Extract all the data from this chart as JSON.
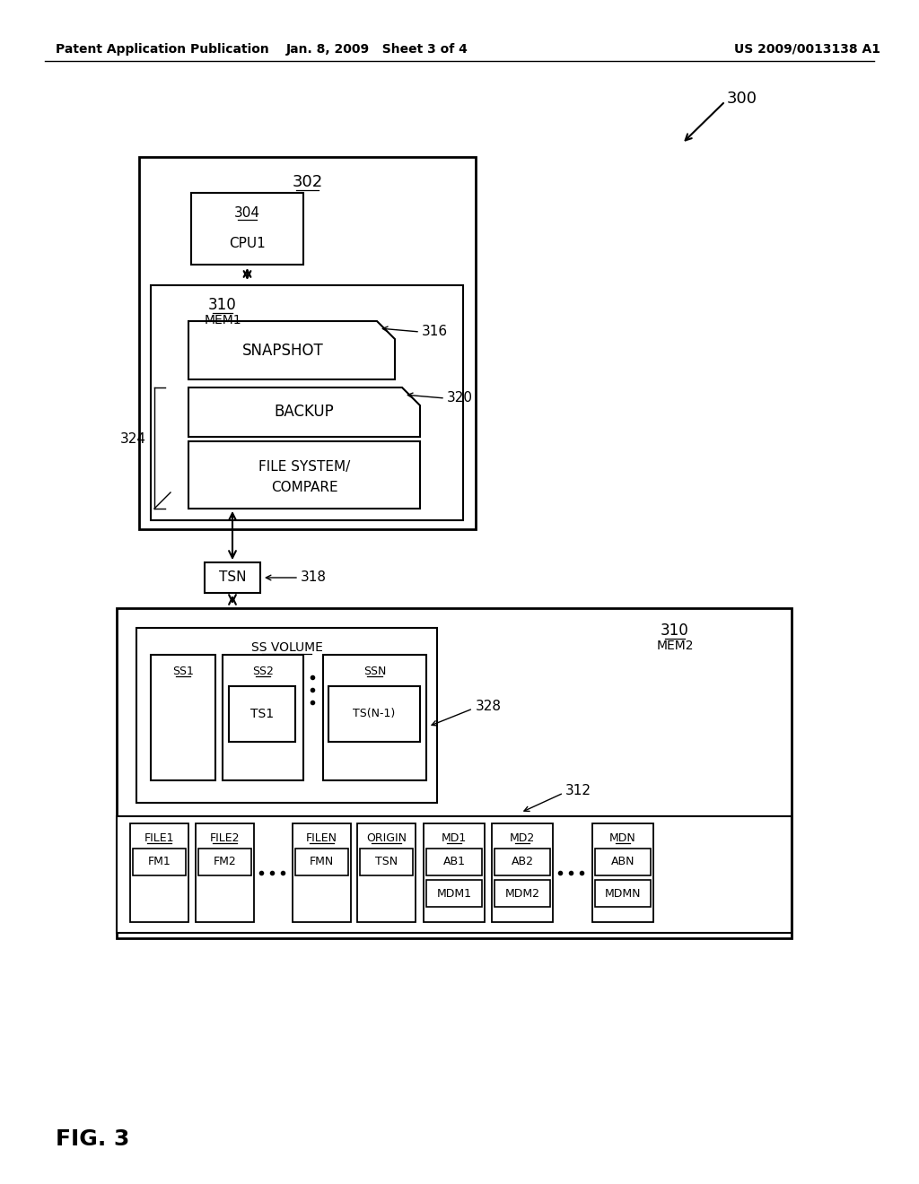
{
  "header_left": "Patent Application Publication",
  "header_mid": "Jan. 8, 2009   Sheet 3 of 4",
  "header_right": "US 2009/0013138 A1",
  "fig_label": "FIG. 3",
  "label_300": "300",
  "label_302": "302",
  "label_304": "304",
  "label_310a": "310",
  "label_mem1": "MEM1",
  "label_316": "316",
  "label_320": "320",
  "label_324": "324",
  "label_tsn_box": "TSN",
  "label_318": "318",
  "label_310b": "310",
  "label_mem2": "MEM2",
  "label_ssvolume": "SS VOLUME",
  "label_328": "328",
  "label_312": "312",
  "text_cpu1": "CPU1",
  "text_snapshot": "SNAPSHOT",
  "text_backup": "BACKUP",
  "text_filesystem1": "FILE SYSTEM/",
  "text_filesystem2": "COMPARE",
  "text_ss1": "SS1",
  "text_ss2": "SS2",
  "text_ssn": "SSN",
  "text_ts1": "TS1",
  "text_tsn1": "TS(N-1)",
  "text_file1": "FILE1",
  "text_file2": "FILE2",
  "text_filen": "FILEN",
  "text_fm1": "FM1",
  "text_fm2": "FM2",
  "text_fmn": "FMN",
  "text_origin": "ORIGIN",
  "text_tsn2": "TSN",
  "text_md1": "MD1",
  "text_md2": "MD2",
  "text_mdn": "MDN",
  "text_ab1": "AB1",
  "text_ab2": "AB2",
  "text_abn": "ABN",
  "text_mdm1": "MDM1",
  "text_mdm2": "MDM2",
  "text_mdmn": "MDMN",
  "bg_color": "#ffffff",
  "box_color": "#000000",
  "text_color": "#000000"
}
